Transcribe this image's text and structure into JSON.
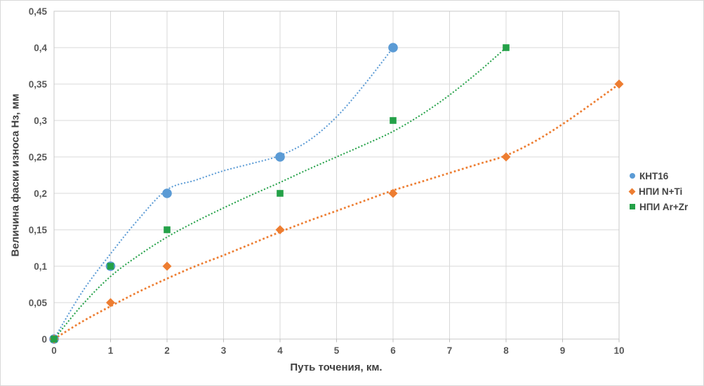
{
  "chart_data": {
    "type": "scatter",
    "title": "",
    "xlabel": "Путь точения, км.",
    "ylabel": "Величина фаски износа Нз, мм",
    "xlim": [
      0,
      10
    ],
    "ylim": [
      0,
      0.45
    ],
    "grid": true,
    "legend_position": "right",
    "x_tick_values": [
      0,
      1,
      2,
      3,
      4,
      5,
      6,
      7,
      8,
      9,
      10
    ],
    "x_tick_labels": [
      "0",
      "1",
      "2",
      "3",
      "4",
      "5",
      "6",
      "7",
      "8",
      "9",
      "10"
    ],
    "y_tick_values": [
      0,
      0.05,
      0.1,
      0.15,
      0.2,
      0.25,
      0.3,
      0.35,
      0.4,
      0.45
    ],
    "y_tick_labels": [
      "0",
      "0,05",
      "0,1",
      "0,15",
      "0,2",
      "0,25",
      "0,3",
      "0,35",
      "0,4",
      "0,45"
    ],
    "colors": {
      "grid": "#d9d9d9",
      "plot_border": "#c8c8c8",
      "tick_mark": "#bfbfbf",
      "tick_text": "#595959",
      "axis_title_text": "#404040",
      "legend_text": "#444444"
    },
    "series": [
      {
        "name": "КНТ16",
        "color": "#5B9BD5",
        "marker": "circle",
        "points": [
          [
            0,
            0
          ],
          [
            1,
            0.1
          ],
          [
            2,
            0.2
          ],
          [
            4,
            0.25
          ],
          [
            6,
            0.4
          ]
        ],
        "trend": [
          [
            0,
            0
          ],
          [
            0.5,
            0.065
          ],
          [
            1,
            0.117
          ],
          [
            1.5,
            0.165
          ],
          [
            2,
            0.205
          ],
          [
            2.5,
            0.218
          ],
          [
            3,
            0.231
          ],
          [
            3.5,
            0.241
          ],
          [
            4,
            0.252
          ],
          [
            4.5,
            0.272
          ],
          [
            5,
            0.305
          ],
          [
            5.5,
            0.35
          ],
          [
            6,
            0.4
          ]
        ]
      },
      {
        "name": "НПИ N+Ti",
        "color": "#ED7D31",
        "marker": "diamond",
        "points": [
          [
            0,
            0
          ],
          [
            1,
            0.05
          ],
          [
            2,
            0.1
          ],
          [
            4,
            0.15
          ],
          [
            6,
            0.2
          ],
          [
            8,
            0.25
          ],
          [
            10,
            0.35
          ]
        ],
        "trend": [
          [
            0,
            0
          ],
          [
            0.5,
            0.024
          ],
          [
            1,
            0.045
          ],
          [
            1.5,
            0.065
          ],
          [
            2,
            0.083
          ],
          [
            2.5,
            0.1
          ],
          [
            3,
            0.115
          ],
          [
            3.5,
            0.131
          ],
          [
            4,
            0.147
          ],
          [
            4.5,
            0.162
          ],
          [
            5,
            0.176
          ],
          [
            5.5,
            0.19
          ],
          [
            6,
            0.204
          ],
          [
            6.5,
            0.216
          ],
          [
            7,
            0.228
          ],
          [
            7.5,
            0.24
          ],
          [
            8,
            0.252
          ],
          [
            8.5,
            0.271
          ],
          [
            9,
            0.295
          ],
          [
            9.5,
            0.322
          ],
          [
            10,
            0.35
          ]
        ]
      },
      {
        "name": "НПИ Ar+Zr",
        "color": "#24A148",
        "marker": "square",
        "points": [
          [
            0,
            0
          ],
          [
            1,
            0.1
          ],
          [
            2,
            0.15
          ],
          [
            4,
            0.2
          ],
          [
            6,
            0.3
          ],
          [
            8,
            0.4
          ]
        ],
        "trend": [
          [
            0,
            0
          ],
          [
            0.5,
            0.047
          ],
          [
            1,
            0.086
          ],
          [
            1.5,
            0.115
          ],
          [
            2,
            0.14
          ],
          [
            2.5,
            0.161
          ],
          [
            3,
            0.18
          ],
          [
            3.5,
            0.198
          ],
          [
            4,
            0.215
          ],
          [
            4.5,
            0.233
          ],
          [
            5,
            0.25
          ],
          [
            5.5,
            0.267
          ],
          [
            6,
            0.285
          ],
          [
            6.5,
            0.308
          ],
          [
            7,
            0.335
          ],
          [
            7.5,
            0.366
          ],
          [
            8,
            0.4
          ]
        ]
      }
    ]
  }
}
